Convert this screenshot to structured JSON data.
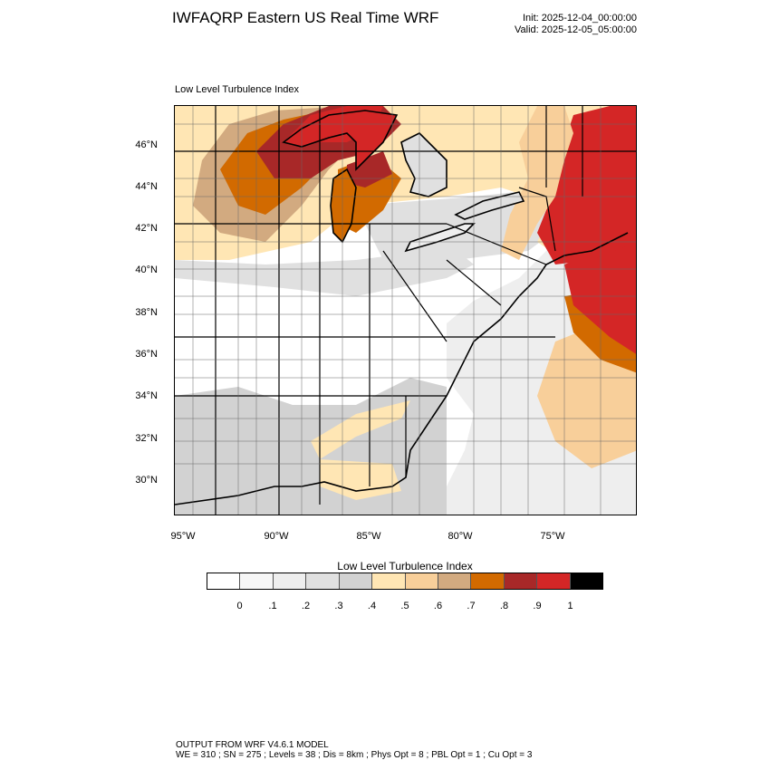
{
  "header": {
    "title": "IWFAQRP Eastern US Real Time WRF",
    "init": "Init: 2025-12-04_00:00:00",
    "valid": "Valid: 2025-12-05_05:00:00"
  },
  "panel": {
    "title": "Low Level Turbulence Index"
  },
  "axes": {
    "lat_labels": [
      "46°N",
      "44°N",
      "42°N",
      "40°N",
      "38°N",
      "36°N",
      "34°N",
      "32°N",
      "30°N"
    ],
    "lon_labels": [
      "95°W",
      "90°W",
      "85°W",
      "80°W",
      "75°W"
    ]
  },
  "legend": {
    "title": "Low Level Turbulence Index",
    "tick_labels": [
      "0",
      ".1",
      ".2",
      ".3",
      ".4",
      ".5",
      ".6",
      ".7",
      ".8",
      ".9",
      "1"
    ],
    "colors": [
      "#ffffff",
      "#f6f6f6",
      "#eeeeee",
      "#e0e0e0",
      "#d2d2d2",
      "#ffe6b4",
      "#f8cf9a",
      "#d2aa80",
      "#d26a00",
      "#a82828",
      "#d42626",
      "#000000"
    ]
  },
  "footer": {
    "line1": "OUTPUT FROM WRF V4.6.1 MODEL",
    "line2": "WE = 310 ; SN = 275 ; Levels = 38 ; Dis = 8km ; Phys Opt = 8 ; PBL Opt = 1 ; Cu Opt = 3"
  }
}
